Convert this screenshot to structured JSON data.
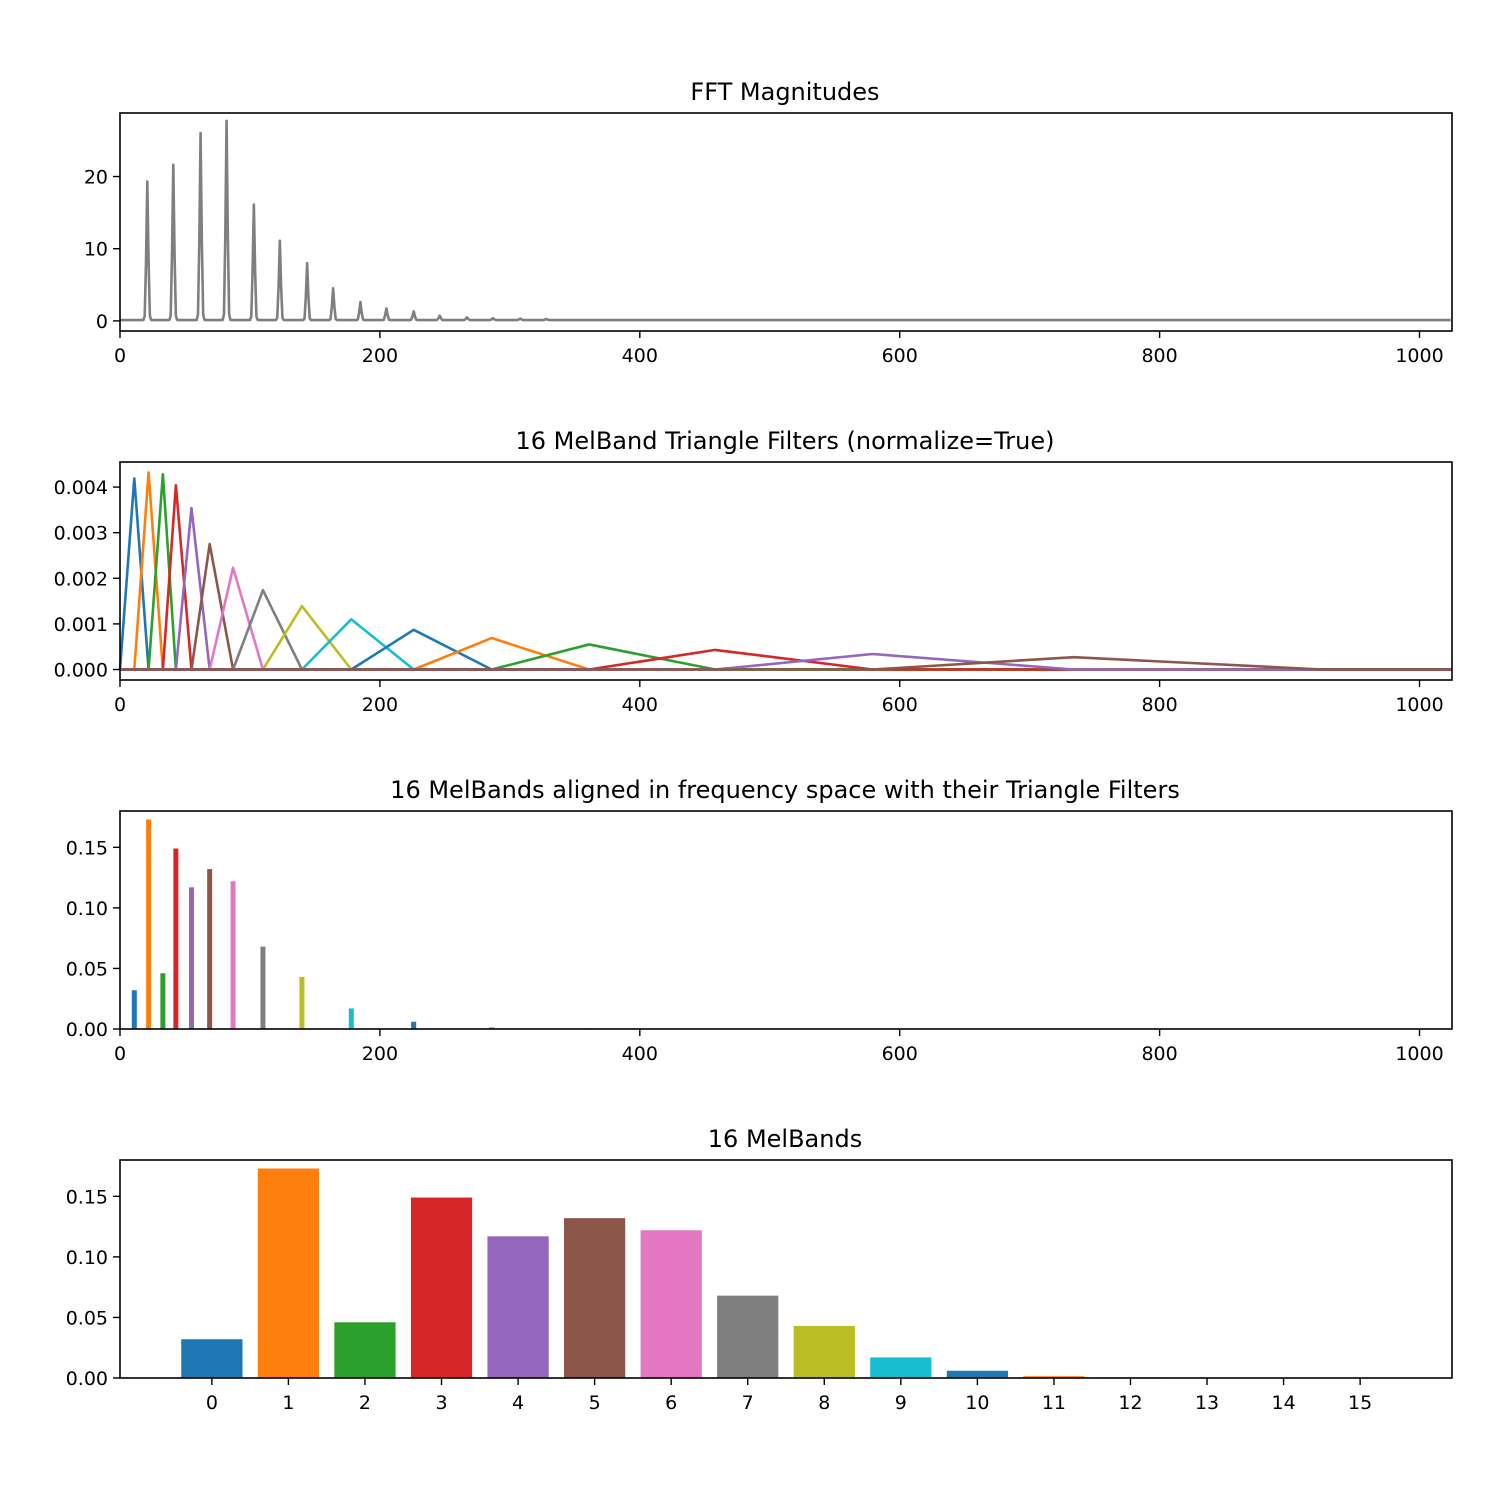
{
  "palette": [
    "#1f77b4",
    "#ff7f0e",
    "#2ca02c",
    "#d62728",
    "#9467bd",
    "#8c564b",
    "#e377c2",
    "#7f7f7f",
    "#bcbd22",
    "#17becf"
  ],
  "chart_data": [
    {
      "type": "line",
      "title": "FFT Magnitudes",
      "xlabel": "",
      "ylabel": "",
      "xlim": [
        0,
        1025
      ],
      "ylim": [
        -1.4,
        28.8
      ],
      "xticks": [
        0,
        200,
        400,
        600,
        800,
        1000
      ],
      "yticks": [
        0,
        10,
        20
      ],
      "grid": false,
      "color": "#7f7f7f",
      "series": [
        {
          "peaks": [
            {
              "x": 21,
              "y": 19.2
            },
            {
              "x": 41,
              "y": 21.5
            },
            {
              "x": 62,
              "y": 25.9
            },
            {
              "x": 82,
              "y": 27.6
            },
            {
              "x": 103,
              "y": 16.0
            },
            {
              "x": 123,
              "y": 11.0
            },
            {
              "x": 144,
              "y": 7.9
            },
            {
              "x": 164,
              "y": 4.4
            },
            {
              "x": 185,
              "y": 2.5
            },
            {
              "x": 205,
              "y": 1.6
            },
            {
              "x": 226,
              "y": 1.2
            },
            {
              "x": 246,
              "y": 0.6
            },
            {
              "x": 267,
              "y": 0.35
            },
            {
              "x": 287,
              "y": 0.25
            },
            {
              "x": 308,
              "y": 0.2
            },
            {
              "x": 328,
              "y": 0.15
            }
          ]
        }
      ]
    },
    {
      "type": "line",
      "title": "16 MelBand Triangle Filters (normalize=True)",
      "xlabel": "",
      "ylabel": "",
      "xlim": [
        0,
        1025
      ],
      "ylim": [
        -0.00023,
        0.00455
      ],
      "xticks": [
        0,
        200,
        400,
        600,
        800,
        1000
      ],
      "yticks": [
        0.0,
        0.001,
        0.002,
        0.003,
        0.004
      ],
      "ytick_labels": [
        "0.000",
        "0.001",
        "0.002",
        "0.003",
        "0.004"
      ],
      "grid": false,
      "filters": [
        {
          "band": 0,
          "left": 0,
          "center": 11,
          "right": 22,
          "peak": 0.00419
        },
        {
          "band": 1,
          "left": 11,
          "center": 22,
          "right": 33,
          "peak": 0.00432
        },
        {
          "band": 2,
          "left": 22,
          "center": 33,
          "right": 43,
          "peak": 0.00428
        },
        {
          "band": 3,
          "left": 33,
          "center": 43,
          "right": 55,
          "peak": 0.00404
        },
        {
          "band": 4,
          "left": 43,
          "center": 55,
          "right": 69,
          "peak": 0.00354
        },
        {
          "band": 5,
          "left": 55,
          "center": 69,
          "right": 87,
          "peak": 0.00275
        },
        {
          "band": 6,
          "left": 69,
          "center": 87,
          "right": 110,
          "peak": 0.00223
        },
        {
          "band": 7,
          "left": 87,
          "center": 110,
          "right": 140,
          "peak": 0.00174
        },
        {
          "band": 8,
          "left": 110,
          "center": 140,
          "right": 178,
          "peak": 0.00139
        },
        {
          "band": 9,
          "left": 140,
          "center": 178,
          "right": 226,
          "peak": 0.0011
        },
        {
          "band": 10,
          "left": 178,
          "center": 226,
          "right": 286,
          "peak": 0.00087
        },
        {
          "band": 11,
          "left": 226,
          "center": 286,
          "right": 361,
          "peak": 0.00069
        },
        {
          "band": 12,
          "left": 286,
          "center": 361,
          "right": 458,
          "peak": 0.00055
        },
        {
          "band": 13,
          "left": 361,
          "center": 458,
          "right": 579,
          "peak": 0.00043
        },
        {
          "band": 14,
          "left": 458,
          "center": 579,
          "right": 734,
          "peak": 0.00034
        },
        {
          "band": 15,
          "left": 579,
          "center": 734,
          "right": 925,
          "peak": 0.00027
        }
      ]
    },
    {
      "type": "bar",
      "title": "16 MelBands aligned in frequency space with their Triangle Filters",
      "xlabel": "",
      "ylabel": "",
      "xlim": [
        0,
        1025
      ],
      "ylim": [
        0,
        0.18
      ],
      "xticks": [
        0,
        200,
        400,
        600,
        800,
        1000
      ],
      "yticks": [
        0.0,
        0.05,
        0.1,
        0.15
      ],
      "ytick_labels": [
        "0.00",
        "0.05",
        "0.10",
        "0.15"
      ],
      "grid": false,
      "x": [
        11,
        22,
        33,
        43,
        55,
        69,
        87,
        110,
        140,
        178,
        226,
        286,
        361,
        458,
        579,
        734
      ],
      "values": [
        0.032,
        0.173,
        0.046,
        0.149,
        0.117,
        0.132,
        0.122,
        0.068,
        0.043,
        0.017,
        0.006,
        0.0015,
        0.0005,
        0.0002,
        0.0001,
        0.0001
      ]
    },
    {
      "type": "bar",
      "title": "16 MelBands",
      "xlabel": "",
      "ylabel": "",
      "categories": [
        "0",
        "1",
        "2",
        "3",
        "4",
        "5",
        "6",
        "7",
        "8",
        "9",
        "10",
        "11",
        "12",
        "13",
        "14",
        "15"
      ],
      "xlim": [
        -1.2,
        16.2
      ],
      "ylim": [
        0,
        0.18
      ],
      "yticks": [
        0.0,
        0.05,
        0.1,
        0.15
      ],
      "ytick_labels": [
        "0.00",
        "0.05",
        "0.10",
        "0.15"
      ],
      "grid": false,
      "values": [
        0.032,
        0.173,
        0.046,
        0.149,
        0.117,
        0.132,
        0.122,
        0.068,
        0.043,
        0.017,
        0.006,
        0.0015,
        0.0005,
        0.0002,
        0.0001,
        0.0001
      ]
    }
  ]
}
